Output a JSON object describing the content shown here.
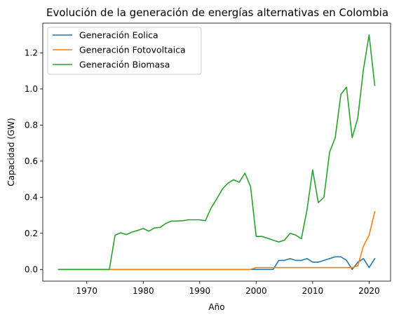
{
  "chart_data": {
    "type": "line",
    "title": "Evolución de la generación de energías alternativas en Colombia",
    "xlabel": "Año",
    "ylabel": "Capacidad (GW)",
    "xlim": [
      1962.2,
      2023.8
    ],
    "ylim": [
      -0.065,
      1.365
    ],
    "xticks": [
      1970,
      1980,
      1990,
      2000,
      2010,
      2020
    ],
    "yticks": [
      0.0,
      0.2,
      0.4,
      0.6,
      0.8,
      1.0,
      1.2
    ],
    "ytick_labels": [
      "0.0",
      "0.2",
      "0.4",
      "0.6",
      "0.8",
      "1.0",
      "1.2"
    ],
    "grid": false,
    "legend_position": "upper-left",
    "x": [
      1965,
      1966,
      1967,
      1968,
      1969,
      1970,
      1971,
      1972,
      1973,
      1974,
      1975,
      1976,
      1977,
      1978,
      1979,
      1980,
      1981,
      1982,
      1983,
      1984,
      1985,
      1986,
      1987,
      1988,
      1989,
      1990,
      1991,
      1992,
      1993,
      1994,
      1995,
      1996,
      1997,
      1998,
      1999,
      2000,
      2001,
      2002,
      2003,
      2004,
      2005,
      2006,
      2007,
      2008,
      2009,
      2010,
      2011,
      2012,
      2013,
      2014,
      2015,
      2016,
      2017,
      2018,
      2019,
      2020,
      2021
    ],
    "series": [
      {
        "name": "Generación Eolica",
        "color": "#1f77b4",
        "values": [
          0,
          0,
          0,
          0,
          0,
          0,
          0,
          0,
          0,
          0,
          0,
          0,
          0,
          0,
          0,
          0,
          0,
          0,
          0,
          0,
          0,
          0,
          0,
          0,
          0,
          0,
          0,
          0,
          0,
          0,
          0,
          0,
          0,
          0,
          0,
          0,
          0,
          0,
          0,
          0.05,
          0.05,
          0.06,
          0.05,
          0.05,
          0.06,
          0.04,
          0.04,
          0.05,
          0.06,
          0.07,
          0.07,
          0.05,
          0.0,
          0.04,
          0.06,
          0.01,
          0.06
        ]
      },
      {
        "name": "Generación Fotovoltaica",
        "color": "#ff7f0e",
        "values": [
          0,
          0,
          0,
          0,
          0,
          0,
          0,
          0,
          0,
          0,
          0,
          0,
          0,
          0,
          0,
          0,
          0,
          0,
          0,
          0,
          0,
          0,
          0,
          0,
          0,
          0,
          0,
          0,
          0,
          0,
          0,
          0,
          0,
          0,
          0,
          0.01,
          0.01,
          0.01,
          0.01,
          0.01,
          0.01,
          0.01,
          0.01,
          0.01,
          0.01,
          0.01,
          0.01,
          0.01,
          0.01,
          0.01,
          0.01,
          0.01,
          0.01,
          0.02,
          0.13,
          0.19,
          0.32
        ]
      },
      {
        "name": "Generación Biomasa",
        "color": "#2ca02c",
        "values": [
          0,
          0,
          0,
          0,
          0,
          0,
          0,
          0,
          0,
          0,
          0.19,
          0.203,
          0.193,
          0.207,
          0.216,
          0.227,
          0.212,
          0.23,
          0.233,
          0.255,
          0.268,
          0.268,
          0.27,
          0.275,
          0.275,
          0.275,
          0.27,
          0.34,
          0.39,
          0.445,
          0.478,
          0.497,
          0.483,
          0.533,
          0.46,
          0.183,
          0.183,
          0.173,
          0.162,
          0.152,
          0.162,
          0.2,
          0.19,
          0.17,
          0.33,
          0.552,
          0.37,
          0.4,
          0.65,
          0.73,
          0.97,
          1.01,
          0.73,
          0.84,
          1.11,
          1.3,
          1.02
        ]
      }
    ]
  }
}
